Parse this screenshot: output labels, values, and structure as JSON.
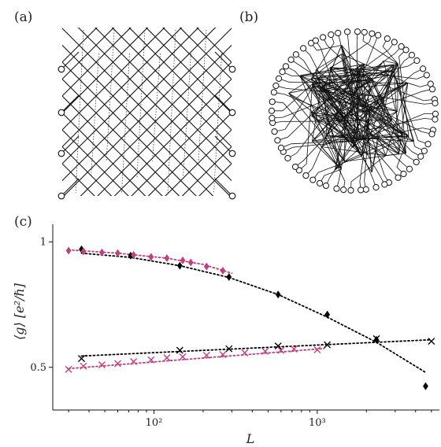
{
  "panels": {
    "a": {
      "label": "(a)"
    },
    "b": {
      "label": "(b)"
    },
    "c": {
      "label": "(c)"
    }
  },
  "colors": {
    "series_black": "#000000",
    "series_magenta": "#c0407f"
  },
  "chart_data": {
    "type": "scatter",
    "xlabel": "L",
    "ylabel": "⟨g⟩ [e²/ℏ]",
    "xscale": "log",
    "xlim": [
      24,
      5600
    ],
    "ylim": [
      0.33,
      1.07
    ],
    "xticks": [
      {
        "value": 100,
        "label": "10²"
      },
      {
        "value": 1000,
        "label": "10³"
      }
    ],
    "yticks": [
      {
        "value": 0.5,
        "label": "0.5"
      },
      {
        "value": 1.0,
        "label": "1"
      }
    ],
    "series": [
      {
        "marker": "diamond",
        "color": "#000000",
        "x": [
          36,
          72,
          144,
          288,
          576,
          1152,
          2304,
          4608
        ],
        "y": [
          0.97,
          0.945,
          0.905,
          0.86,
          0.79,
          0.71,
          0.61,
          0.425
        ]
      },
      {
        "marker": "diamond",
        "color": "#c0407f",
        "x": [
          30,
          37,
          48,
          60,
          75,
          96,
          120,
          150,
          168,
          210,
          264
        ],
        "y": [
          0.965,
          0.962,
          0.958,
          0.955,
          0.948,
          0.94,
          0.935,
          0.926,
          0.918,
          0.902,
          0.885
        ]
      },
      {
        "marker": "cross",
        "color": "#000000",
        "x": [
          36,
          144,
          288,
          576,
          1152,
          2304,
          5000
        ],
        "y": [
          0.535,
          0.568,
          0.574,
          0.585,
          0.59,
          0.614,
          0.604
        ]
      },
      {
        "marker": "cross",
        "color": "#c0407f",
        "x": [
          30,
          37,
          48,
          60,
          75,
          96,
          120,
          150,
          210,
          264,
          360,
          480,
          600,
          720,
          1000
        ],
        "y": [
          0.492,
          0.505,
          0.51,
          0.515,
          0.523,
          0.53,
          0.538,
          0.542,
          0.548,
          0.551,
          0.558,
          0.564,
          0.568,
          0.573,
          0.57
        ]
      }
    ],
    "fits": [
      {
        "color": "#000000",
        "x": [
          36,
          72,
          144,
          288,
          576,
          1152,
          2304,
          4608
        ],
        "y": [
          0.955,
          0.938,
          0.905,
          0.858,
          0.79,
          0.7,
          0.6,
          0.48
        ]
      },
      {
        "color": "#c0407f",
        "x": [
          30,
          60,
          120,
          200,
          300
        ],
        "y": [
          0.968,
          0.955,
          0.935,
          0.91,
          0.875
        ]
      },
      {
        "color": "#000000",
        "x": [
          36,
          5000
        ],
        "y": [
          0.545,
          0.61
        ]
      },
      {
        "color": "#c0407f",
        "x": [
          30,
          1100
        ],
        "y": [
          0.495,
          0.575
        ]
      }
    ]
  }
}
